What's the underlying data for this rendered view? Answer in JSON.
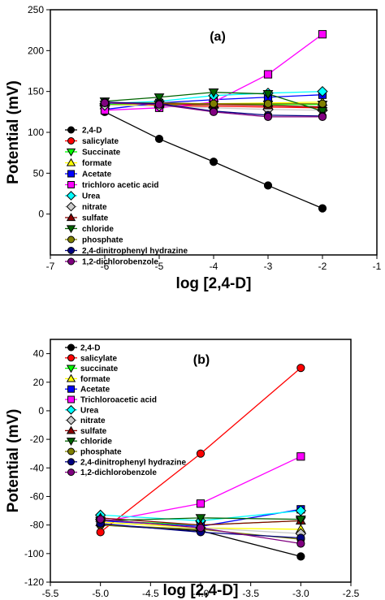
{
  "chart_data": [
    {
      "type": "line",
      "panel_label": "(a)",
      "xlabel": "log [2,4-D]",
      "ylabel": "Potential (mV)",
      "xlim": [
        -7,
        -1
      ],
      "ylim": [
        -50,
        250
      ],
      "xticks": [
        -7,
        -6,
        -5,
        -4,
        -3,
        -2,
        -1
      ],
      "yticks": [
        0,
        50,
        100,
        150,
        200,
        250
      ],
      "xtick_labels": [
        "-7",
        "-6",
        "-5",
        "-4",
        "-3",
        "-2",
        "-1"
      ],
      "ytick_labels": [
        "0",
        "50",
        "100",
        "150",
        "200",
        "250"
      ],
      "legend_position": "lower-left",
      "x": [
        -6,
        -5,
        -4,
        -3,
        -2
      ],
      "series": [
        {
          "name": "2,4-D",
          "marker": "circle",
          "color": "#000000",
          "values": [
            125,
            92,
            64,
            35,
            7
          ]
        },
        {
          "name": "salicylate",
          "marker": "circle",
          "color": "#ff0000",
          "values": [
            135,
            133,
            132,
            131,
            130
          ]
        },
        {
          "name": "Succinate",
          "marker": "triangle-down",
          "color": "#00ff00",
          "values": [
            134,
            134,
            134,
            134,
            134
          ]
        },
        {
          "name": "formate",
          "marker": "triangle-up",
          "color": "#ffff00",
          "values": [
            133,
            134,
            135,
            136,
            137
          ]
        },
        {
          "name": "Acetate",
          "marker": "square",
          "color": "#0000ff",
          "values": [
            128,
            136,
            140,
            143,
            146
          ]
        },
        {
          "name": "trichloro acetic acid",
          "marker": "square",
          "color": "#ff00ff",
          "values": [
            127,
            130,
            137,
            171,
            220
          ]
        },
        {
          "name": "Urea",
          "marker": "diamond",
          "color": "#00ffff",
          "values": [
            135,
            138,
            145,
            148,
            150
          ]
        },
        {
          "name": "nitrate",
          "marker": "diamond",
          "color": "#cccccc",
          "values": [
            133,
            132,
            130,
            128,
            127
          ]
        },
        {
          "name": "sulfate",
          "marker": "triangle-up",
          "color": "#8b0000",
          "values": [
            136,
            135,
            134,
            133,
            131
          ]
        },
        {
          "name": "chloride",
          "marker": "triangle-down",
          "color": "#006400",
          "values": [
            138,
            143,
            149,
            147,
            126
          ]
        },
        {
          "name": "phosphate",
          "marker": "circle",
          "color": "#808000",
          "values": [
            136,
            136,
            135,
            135,
            135
          ]
        },
        {
          "name": "2,4-dinitrophenyl hydrazine",
          "marker": "circle",
          "color": "#000080",
          "values": [
            137,
            135,
            126,
            121,
            120
          ]
        },
        {
          "name": "1,2-dichlorobenzole",
          "marker": "circle",
          "color": "#800080",
          "values": [
            136,
            134,
            125,
            119,
            119
          ]
        }
      ]
    },
    {
      "type": "line",
      "panel_label": "(b)",
      "xlabel": "log [2,4-D]",
      "ylabel": "Potential (mV)",
      "xlim": [
        -5.5,
        -2.5
      ],
      "ylim": [
        -120,
        50
      ],
      "xticks": [
        -5.5,
        -5.0,
        -4.5,
        -4.0,
        -3.5,
        -3.0,
        -2.5
      ],
      "yticks": [
        -120,
        -100,
        -80,
        -60,
        -40,
        -20,
        0,
        20,
        40
      ],
      "xtick_labels": [
        "-5.5",
        "-5.0",
        "-4.5",
        "-4.0",
        "-3.5",
        "-3.0",
        "-2.5"
      ],
      "ytick_labels": [
        "-120",
        "-100",
        "-80",
        "-60",
        "-40",
        "-20",
        "0",
        "20",
        "40"
      ],
      "legend_position": "top-left",
      "x": [
        -5,
        -4,
        -3
      ],
      "series": [
        {
          "name": "2,4-D",
          "marker": "circle",
          "color": "#000000",
          "values": [
            -80,
            -84,
            -102
          ]
        },
        {
          "name": "salicylate",
          "marker": "circle",
          "color": "#ff0000",
          "values": [
            -85,
            -30,
            30
          ]
        },
        {
          "name": "succinate",
          "marker": "triangle-down",
          "color": "#00ff00",
          "values": [
            -77,
            -80,
            -77
          ]
        },
        {
          "name": "formate",
          "marker": "triangle-up",
          "color": "#ffff00",
          "values": [
            -78,
            -82,
            -83
          ]
        },
        {
          "name": "Acetate",
          "marker": "square",
          "color": "#0000ff",
          "values": [
            -77,
            -81,
            -69
          ]
        },
        {
          "name": "Trichloroacetic acid",
          "marker": "square",
          "color": "#ff00ff",
          "values": [
            -78,
            -65,
            -32
          ]
        },
        {
          "name": "Urea",
          "marker": "diamond",
          "color": "#00ffff",
          "values": [
            -73,
            -77,
            -70
          ]
        },
        {
          "name": "nitrate",
          "marker": "diamond",
          "color": "#cccccc",
          "values": [
            -76,
            -82,
            -86
          ]
        },
        {
          "name": "sulfate",
          "marker": "triangle-up",
          "color": "#8b0000",
          "values": [
            -75,
            -80,
            -77
          ]
        },
        {
          "name": "chloride",
          "marker": "triangle-down",
          "color": "#006400",
          "values": [
            -77,
            -75,
            -76
          ]
        },
        {
          "name": "phosphate",
          "marker": "circle",
          "color": "#808000",
          "values": [
            -80,
            -83,
            -90
          ]
        },
        {
          "name": "2,4-dinitrophenyl hydrazine",
          "marker": "circle",
          "color": "#000080",
          "values": [
            -79,
            -85,
            -89
          ]
        },
        {
          "name": "1,2-dichlorobenzole",
          "marker": "circle",
          "color": "#800080",
          "values": [
            -76,
            -82,
            -93
          ]
        }
      ]
    }
  ]
}
